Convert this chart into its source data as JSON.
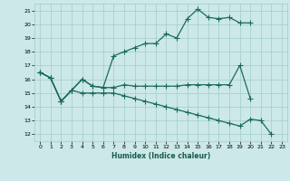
{
  "xlabel": "Humidex (Indice chaleur)",
  "bg_color": "#cce8e8",
  "grid_color": "#a0cccc",
  "line_color": "#1a6b5a",
  "xlim": [
    -0.5,
    23.5
  ],
  "ylim": [
    11.5,
    21.5
  ],
  "yticks": [
    12,
    13,
    14,
    15,
    16,
    17,
    18,
    19,
    20,
    21
  ],
  "xticks": [
    0,
    1,
    2,
    3,
    4,
    5,
    6,
    7,
    8,
    9,
    10,
    11,
    12,
    13,
    14,
    15,
    16,
    17,
    18,
    19,
    20,
    21,
    22,
    23
  ],
  "line1_x": [
    0,
    1,
    2,
    3,
    4,
    5,
    6,
    7,
    8,
    9,
    10,
    11,
    12,
    13,
    14,
    15,
    16,
    17,
    18,
    19,
    20
  ],
  "line1_y": [
    16.5,
    16.1,
    14.4,
    15.2,
    16.0,
    15.5,
    15.4,
    17.7,
    18.0,
    18.3,
    18.6,
    18.6,
    19.3,
    19.0,
    20.4,
    21.1,
    20.5,
    20.4,
    20.5,
    20.1,
    20.1
  ],
  "line2_x": [
    0,
    1,
    2,
    3,
    4,
    5,
    6,
    7,
    8,
    9,
    10,
    11,
    12,
    13,
    14,
    15,
    16,
    17,
    18,
    19,
    20
  ],
  "line2_y": [
    16.5,
    16.1,
    14.4,
    15.2,
    16.0,
    15.5,
    15.4,
    15.4,
    15.6,
    15.5,
    15.5,
    15.5,
    15.5,
    15.5,
    15.6,
    15.6,
    15.6,
    15.6,
    15.6,
    17.0,
    14.6
  ],
  "line3_x": [
    0,
    1,
    2,
    3,
    4,
    5,
    6,
    7,
    8,
    9,
    10,
    11,
    12,
    13,
    14,
    15,
    16,
    17,
    18,
    19,
    20,
    21,
    22
  ],
  "line3_y": [
    16.5,
    16.1,
    14.4,
    15.2,
    15.0,
    15.0,
    15.0,
    15.0,
    14.8,
    14.6,
    14.4,
    14.2,
    14.0,
    13.8,
    13.6,
    13.4,
    13.2,
    13.0,
    12.8,
    12.6,
    13.1,
    13.0,
    12.0
  ],
  "marker_size": 2,
  "line_width": 0.9
}
